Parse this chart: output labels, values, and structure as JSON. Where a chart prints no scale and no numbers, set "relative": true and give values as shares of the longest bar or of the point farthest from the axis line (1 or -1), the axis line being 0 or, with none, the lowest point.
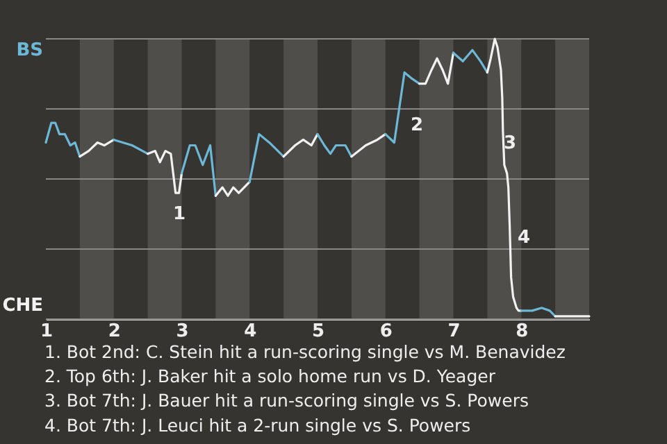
{
  "chart_data": {
    "type": "line",
    "relative": true,
    "xlim": [
      1,
      9
    ],
    "xticks": [
      1,
      2,
      3,
      4,
      5,
      6,
      7,
      8
    ],
    "grid": "y",
    "series": [
      {
        "color": "#6cb8d6",
        "x": [
          1.0,
          1.08,
          1.14,
          1.2,
          1.28,
          1.36,
          1.43,
          1.5
        ],
        "values": [
          0.63,
          0.7,
          0.7,
          0.66,
          0.66,
          0.62,
          0.63,
          0.58
        ]
      },
      {
        "color": "#f2f2f2",
        "x": [
          1.5,
          1.63,
          1.76,
          1.86,
          2.0
        ],
        "values": [
          0.58,
          0.6,
          0.63,
          0.62,
          0.64
        ]
      },
      {
        "color": "#6cb8d6",
        "x": [
          2.0,
          2.27,
          2.5
        ],
        "values": [
          0.64,
          0.62,
          0.59
        ]
      },
      {
        "color": "#f2f2f2",
        "x": [
          2.5,
          2.61,
          2.68,
          2.76,
          2.84,
          2.91,
          2.96,
          3.0
        ],
        "values": [
          0.59,
          0.6,
          0.56,
          0.6,
          0.59,
          0.45,
          0.45,
          0.52
        ]
      },
      {
        "color": "#6cb8d6",
        "x": [
          3.0,
          3.12,
          3.2,
          3.31,
          3.42,
          3.5
        ],
        "values": [
          0.52,
          0.62,
          0.62,
          0.55,
          0.62,
          0.44
        ]
      },
      {
        "color": "#f2f2f2",
        "x": [
          3.5,
          3.6,
          3.68,
          3.76,
          3.84,
          3.92,
          4.0
        ],
        "values": [
          0.44,
          0.47,
          0.44,
          0.47,
          0.45,
          0.47,
          0.49
        ]
      },
      {
        "color": "#6cb8d6",
        "x": [
          4.0,
          4.14,
          4.29,
          4.5
        ],
        "values": [
          0.49,
          0.66,
          0.63,
          0.58
        ]
      },
      {
        "color": "#f2f2f2",
        "x": [
          4.5,
          4.67,
          4.79,
          4.91,
          5.0
        ],
        "values": [
          0.58,
          0.62,
          0.64,
          0.62,
          0.66
        ]
      },
      {
        "color": "#6cb8d6",
        "x": [
          5.0,
          5.1,
          5.19,
          5.27,
          5.41,
          5.5
        ],
        "values": [
          0.66,
          0.62,
          0.59,
          0.62,
          0.62,
          0.58
        ]
      },
      {
        "color": "#f2f2f2",
        "x": [
          5.5,
          5.71,
          5.88,
          6.0
        ],
        "values": [
          0.58,
          0.62,
          0.64,
          0.66
        ]
      },
      {
        "color": "#6cb8d6",
        "x": [
          6.0,
          6.13,
          6.28,
          6.38,
          6.5
        ],
        "values": [
          0.66,
          0.63,
          0.88,
          0.86,
          0.84
        ]
      },
      {
        "color": "#f2f2f2",
        "x": [
          6.5,
          6.59,
          6.68,
          6.76,
          6.84,
          6.92,
          7.0
        ],
        "values": [
          0.84,
          0.84,
          0.89,
          0.93,
          0.89,
          0.84,
          0.95
        ]
      },
      {
        "color": "#6cb8d6",
        "x": [
          7.0,
          7.14,
          7.28,
          7.4,
          7.5
        ],
        "values": [
          0.95,
          0.92,
          0.96,
          0.92,
          0.88
        ]
      },
      {
        "color": "#f2f2f2",
        "x": [
          7.5,
          7.55,
          7.61,
          7.65,
          7.7,
          7.72,
          7.73,
          7.75,
          7.79,
          7.81,
          7.83,
          7.85,
          7.88,
          7.93,
          7.96,
          8.0
        ],
        "values": [
          0.88,
          0.93,
          1.0,
          0.97,
          0.89,
          0.79,
          0.67,
          0.55,
          0.52,
          0.47,
          0.33,
          0.15,
          0.08,
          0.04,
          0.03,
          0.03
        ]
      },
      {
        "color": "#6cb8d6",
        "x": [
          8.0,
          8.16,
          8.3,
          8.42,
          8.5
        ],
        "values": [
          0.03,
          0.03,
          0.04,
          0.03,
          0.01
        ]
      },
      {
        "color": "#f2f2f2",
        "x": [
          8.5,
          9.0
        ],
        "values": [
          0.01,
          0.01
        ]
      }
    ],
    "bands": [
      {
        "axis": "x",
        "from": 1.5,
        "to": 2,
        "color": "#504e4b"
      },
      {
        "axis": "x",
        "from": 2.5,
        "to": 3,
        "color": "#504e4b"
      },
      {
        "axis": "x",
        "from": 3.5,
        "to": 4,
        "color": "#504e4b"
      },
      {
        "axis": "x",
        "from": 4.5,
        "to": 5,
        "color": "#504e4b"
      },
      {
        "axis": "x",
        "from": 5.5,
        "to": 6,
        "color": "#504e4b"
      },
      {
        "axis": "x",
        "from": 6.5,
        "to": 7,
        "color": "#504e4b"
      },
      {
        "axis": "x",
        "from": 7.5,
        "to": 8,
        "color": "#504e4b"
      },
      {
        "axis": "x",
        "from": 8.5,
        "to": 9,
        "color": "#504e4b"
      }
    ],
    "annotations": [
      "1",
      "2",
      "3",
      "4",
      "BS",
      "CHE",
      "1. Bot 2nd: C. Stein hit a run-scoring single vs M. Benavidez",
      "2. Top 6th: J. Baker hit a solo home run vs D. Yeager",
      "3. Bot 7th: J. Bauer hit a run-scoring single vs S. Powers",
      "4. Bot 7th: J. Leuci hit a 2-run single vs S. Powers"
    ]
  }
}
